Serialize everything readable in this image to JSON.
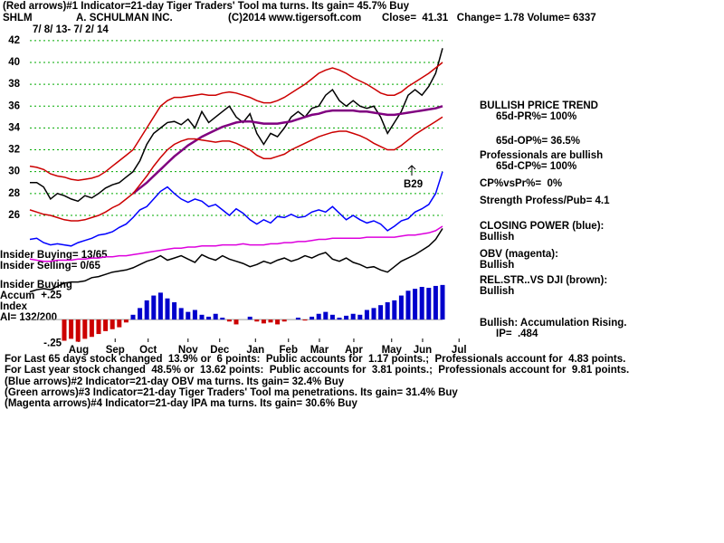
{
  "header": {
    "line1": "(Red arrows)#1 Indicator=21-day Tiger Traders' Tool ma turns. Its gain= 45.7% Buy",
    "symbol": "SHLM",
    "company": "A. SCHULMAN INC.",
    "copyright": "(C)2014 www.tigersoft.com",
    "quote": "Close=  41.31   Change= 1.78 Volume= 6337",
    "range": "7/ 8/ 13- 7/ 2/ 14"
  },
  "sidebar": {
    "trend": "BULLISH PRICE TREND",
    "pr": "65d-PR%= 100%",
    "op": "65d-OP%= 36.5%",
    "prof": "Professionals are bullish",
    "cp": "65d-CP%= 100%",
    "cpvspr": "CP%vsPr%=  0%",
    "strength": "Strength Profess/Pub= 4.1",
    "closing_power": "CLOSING POWER (blue):",
    "closing_power_state": "Bullish",
    "obv": "OBV (magenta):",
    "obv_state": "Bullish",
    "relstr": "REL.STR..VS DJI (brown):",
    "relstr_state": "Bullish",
    "accum": "Bullish: Accumulation Rising.",
    "ip": "IP=  .484"
  },
  "left_labels": {
    "insider_buying": "Insider Buying= 13/65",
    "insider_selling": "Insider Selling= 0/65",
    "insider_buying2": "Insider Buying",
    "accum": "Accum",
    "index": "Index",
    "ai": "AI= 132/200"
  },
  "annotation": "B29",
  "footer": [
    "For Last 65 days stock changed  13.9% or  6 points:  Public accounts for  1.17 points.;  Professionals account for  4.83 points.",
    "For Last year stock changed  48.5% or  13.62 points:  Public accounts for  3.81 points.;  Professionals account for  9.81 points.",
    "(Blue arrows)#2 Indicator=21-day OBV ma turns. Its gain= 32.4% Buy",
    "(Green arrows)#3 Indicator=21-day Tiger Traders' Tool ma penetrations. Its gain= 31.4% Buy",
    "(Magenta arrows)#4 Indicator=21-day IPA ma turns. Its gain= 30.6% Buy"
  ],
  "chart_data": [
    {
      "type": "line",
      "x": [
        0,
        1,
        2,
        3,
        4,
        5,
        6,
        7,
        8,
        9,
        10,
        11,
        12,
        13,
        14,
        15,
        16,
        17,
        18,
        19,
        20,
        21,
        22,
        23,
        24,
        25,
        26,
        27,
        28,
        29,
        30,
        31,
        32,
        33,
        34,
        35,
        36,
        37,
        38,
        39,
        40,
        41,
        42,
        43,
        44,
        45,
        46,
        47,
        48,
        49,
        50,
        51,
        52,
        53,
        54,
        55,
        56,
        57,
        58,
        59,
        60
      ],
      "xlim": [
        0,
        62.5
      ],
      "xticks": [
        {
          "value": 7.1,
          "label": "Aug"
        },
        {
          "value": 12.4,
          "label": "Sep"
        },
        {
          "value": 17.2,
          "label": "Oct"
        },
        {
          "value": 23,
          "label": "Nov"
        },
        {
          "value": 27.6,
          "label": "Dec"
        },
        {
          "value": 32.8,
          "label": "Jan"
        },
        {
          "value": 37.6,
          "label": "Feb"
        },
        {
          "value": 42.1,
          "label": "Mar"
        },
        {
          "value": 47.1,
          "label": "Apr"
        },
        {
          "value": 52.6,
          "label": "May"
        },
        {
          "value": 57.1,
          "label": "Jun"
        },
        {
          "value": 62.4,
          "label": "Jul"
        }
      ],
      "ylim": [
        14.4,
        42.4
      ],
      "yticks": [
        26,
        28,
        30,
        32,
        34,
        36,
        38,
        40,
        42
      ],
      "grid": true,
      "grid_color": "#00aa00",
      "series": [
        {
          "color": "#000000",
          "values": [
            29.0,
            29.0,
            28.6,
            27.5,
            28.0,
            27.8,
            27.5,
            27.3,
            27.8,
            27.6,
            28.0,
            28.5,
            28.8,
            29.0,
            29.5,
            30.0,
            31.0,
            32.5,
            33.5,
            34.0,
            34.5,
            34.6,
            34.3,
            34.8,
            34.0,
            35.5,
            34.5,
            35.0,
            35.5,
            36.0,
            35.0,
            34.5,
            35.3,
            33.5,
            32.5,
            33.5,
            33.2,
            34.0,
            35.0,
            35.5,
            35.0,
            35.8,
            36.0,
            37.0,
            37.5,
            36.5,
            36.0,
            36.5,
            36.0,
            35.8,
            36.0,
            35.0,
            33.5,
            34.5,
            35.5,
            37.0,
            37.5,
            37.0,
            37.8,
            39.0,
            41.3
          ]
        },
        {
          "color": "#800080",
          "values": [
            null,
            null,
            null,
            null,
            null,
            null,
            null,
            null,
            null,
            null,
            null,
            null,
            null,
            null,
            null,
            28.0,
            28.5,
            29.0,
            29.6,
            30.2,
            30.8,
            31.4,
            31.9,
            32.4,
            32.8,
            33.2,
            33.5,
            33.8,
            34.1,
            34.3,
            34.5,
            34.6,
            34.6,
            34.5,
            34.4,
            34.4,
            34.4,
            34.5,
            34.6,
            34.8,
            35.0,
            35.2,
            35.3,
            35.5,
            35.6,
            35.6,
            35.6,
            35.6,
            35.5,
            35.5,
            35.4,
            35.3,
            35.2,
            35.2,
            35.3,
            35.4,
            35.5,
            35.6,
            35.7,
            35.8,
            36.0
          ]
        },
        {
          "color": "#cc0000",
          "values": [
            30.5,
            30.4,
            30.2,
            29.8,
            29.6,
            29.5,
            29.3,
            29.2,
            29.3,
            29.4,
            29.6,
            30.0,
            30.5,
            31.0,
            31.5,
            32.0,
            33.0,
            34.0,
            35.0,
            36.0,
            36.5,
            36.8,
            36.8,
            36.9,
            37.0,
            37.1,
            37.0,
            37.0,
            37.2,
            37.3,
            37.2,
            37.0,
            36.8,
            36.5,
            36.3,
            36.3,
            36.5,
            36.8,
            37.2,
            37.6,
            38.0,
            38.5,
            39.0,
            39.3,
            39.5,
            39.3,
            39.0,
            38.6,
            38.3,
            38.0,
            37.6,
            37.2,
            37.0,
            37.0,
            37.3,
            37.8,
            38.2,
            38.6,
            39.0,
            39.5,
            40.0
          ]
        },
        {
          "color": "#cc0000",
          "values": [
            26.5,
            26.3,
            26.1,
            26.0,
            25.8,
            25.6,
            25.5,
            25.5,
            25.6,
            25.8,
            26.0,
            26.3,
            26.7,
            27.0,
            27.5,
            28.0,
            28.8,
            29.6,
            30.5,
            31.3,
            32.0,
            32.5,
            32.8,
            33.0,
            33.0,
            32.9,
            32.8,
            32.7,
            32.8,
            32.8,
            32.6,
            32.3,
            32.0,
            31.5,
            31.2,
            31.2,
            31.4,
            31.6,
            32.0,
            32.3,
            32.6,
            32.9,
            33.2,
            33.4,
            33.6,
            33.7,
            33.7,
            33.5,
            33.3,
            33.0,
            32.6,
            32.3,
            32.0,
            32.0,
            32.4,
            32.9,
            33.4,
            33.8,
            34.2,
            34.6,
            35.0
          ]
        },
        {
          "color": "#0000ff",
          "values": [
            23.8,
            23.9,
            23.5,
            23.3,
            23.4,
            23.3,
            23.2,
            23.5,
            23.7,
            23.9,
            24.2,
            24.3,
            24.5,
            24.9,
            25.2,
            25.8,
            26.5,
            26.8,
            27.5,
            28.2,
            28.6,
            28.0,
            27.5,
            27.2,
            27.5,
            27.3,
            26.8,
            27.0,
            26.5,
            26.0,
            26.6,
            26.2,
            25.6,
            25.2,
            25.6,
            25.3,
            25.9,
            25.8,
            26.1,
            25.8,
            25.9,
            26.3,
            26.5,
            26.3,
            26.8,
            26.2,
            25.6,
            26.0,
            25.6,
            25.3,
            25.5,
            25.2,
            24.6,
            25.0,
            25.5,
            25.7,
            26.3,
            26.6,
            27.0,
            28.0,
            30.0
          ]
        },
        {
          "color": "#dd00dd",
          "values": [
            22.0,
            21.9,
            21.8,
            21.8,
            21.9,
            21.9,
            21.9,
            22.0,
            22.0,
            22.1,
            22.1,
            22.2,
            22.2,
            22.3,
            22.3,
            22.4,
            22.5,
            22.6,
            22.7,
            22.8,
            22.9,
            23.0,
            23.0,
            23.1,
            23.1,
            23.2,
            23.2,
            23.2,
            23.3,
            23.3,
            23.3,
            23.4,
            23.3,
            23.3,
            23.3,
            23.4,
            23.4,
            23.5,
            23.5,
            23.6,
            23.6,
            23.7,
            23.8,
            23.8,
            23.9,
            23.9,
            23.9,
            23.9,
            23.9,
            24.0,
            24.0,
            24.0,
            24.0,
            24.0,
            24.1,
            24.2,
            24.2,
            24.3,
            24.4,
            24.6,
            25.0
          ]
        },
        {
          "color": "#000000",
          "values": [
            19.0,
            19.2,
            19.3,
            19.2,
            19.5,
            19.8,
            19.9,
            19.9,
            20.0,
            20.3,
            20.4,
            20.6,
            20.8,
            20.9,
            21.0,
            21.2,
            21.5,
            21.8,
            22.0,
            22.3,
            21.9,
            22.1,
            22.3,
            22.0,
            21.7,
            22.4,
            22.1,
            21.9,
            22.3,
            22.0,
            21.8,
            21.6,
            21.3,
            21.5,
            21.8,
            21.6,
            21.9,
            22.1,
            21.8,
            22.0,
            22.3,
            22.1,
            22.4,
            22.6,
            22.0,
            21.8,
            22.1,
            21.7,
            21.5,
            21.2,
            21.3,
            21.0,
            20.8,
            21.3,
            21.8,
            22.1,
            22.4,
            22.8,
            23.2,
            23.8,
            24.8
          ]
        }
      ]
    },
    {
      "type": "bar",
      "x": [
        0,
        1,
        2,
        3,
        4,
        5,
        6,
        7,
        8,
        9,
        10,
        11,
        12,
        13,
        14,
        15,
        16,
        17,
        18,
        19,
        20,
        21,
        22,
        23,
        24,
        25,
        26,
        27,
        28,
        29,
        30,
        31,
        32,
        33,
        34,
        35,
        36,
        37,
        38,
        39,
        40,
        41,
        42,
        43,
        44,
        45,
        46,
        47,
        48,
        49,
        50,
        51,
        52,
        53,
        54,
        55,
        56,
        57,
        58,
        59,
        60
      ],
      "xlim": [
        0,
        62.5
      ],
      "ylim": [
        -0.3,
        0.5
      ],
      "yticks": [
        {
          "value": 0.25,
          "label": "+.25"
        },
        {
          "value": -0.25,
          "label": "-.25"
        }
      ],
      "color": "#0000cc",
      "negative_color": "#cc0000",
      "values": [
        null,
        null,
        null,
        null,
        null,
        -0.22,
        -0.2,
        -0.23,
        -0.2,
        -0.18,
        -0.15,
        -0.12,
        -0.1,
        -0.08,
        -0.03,
        0.05,
        0.12,
        0.2,
        0.25,
        0.28,
        0.22,
        0.18,
        0.12,
        0.08,
        0.1,
        0.05,
        0.03,
        0.06,
        0.02,
        -0.02,
        -0.05,
        0.0,
        0.03,
        -0.02,
        -0.04,
        -0.03,
        -0.05,
        -0.02,
        0.0,
        0.02,
        -0.01,
        0.03,
        0.06,
        0.08,
        0.05,
        0.02,
        0.04,
        0.06,
        0.05,
        0.1,
        0.12,
        0.15,
        0.18,
        0.2,
        0.25,
        0.3,
        0.32,
        0.34,
        0.33,
        0.35,
        0.36
      ]
    }
  ]
}
